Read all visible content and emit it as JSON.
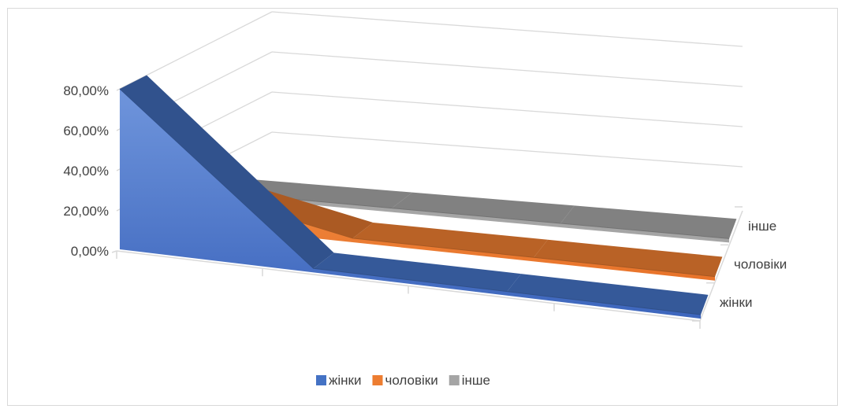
{
  "chart_data": {
    "type": "area",
    "subtype": "3d-area",
    "categories": [
      "",
      "",
      "",
      ""
    ],
    "y_ticks": [
      "0,00%",
      "20,00%",
      "40,00%",
      "60,00%",
      "80,00%"
    ],
    "ylim": [
      0,
      0.8
    ],
    "series": [
      {
        "name": "жінки",
        "values": [
          0.8,
          0.02,
          0.02,
          0.02
        ],
        "color": "#4472c4"
      },
      {
        "name": "чоловіки",
        "values": [
          0.2,
          0.02,
          0.02,
          0.02
        ],
        "color": "#ed7d31"
      },
      {
        "name": "інше",
        "values": [
          0.02,
          0.02,
          0.02,
          0.02
        ],
        "color": "#a5a5a5"
      }
    ],
    "grid": true,
    "legend_position": "bottom"
  }
}
